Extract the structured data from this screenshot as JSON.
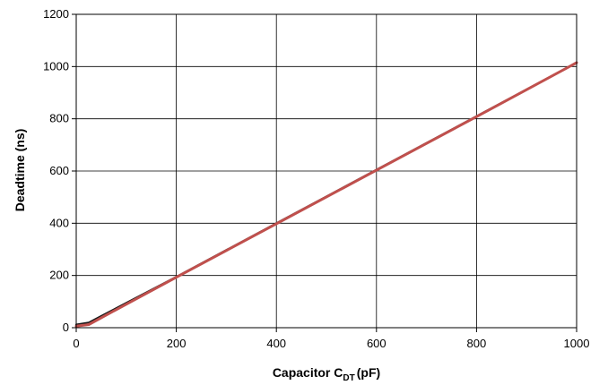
{
  "chart_data": {
    "type": "line",
    "title": "",
    "xlabel": {
      "main": "Capacitor C",
      "subscript": "DT",
      "unit": "(pF)"
    },
    "ylabel": "Deadtime (ns)",
    "xlim": [
      0,
      1000
    ],
    "ylim": [
      0,
      1200
    ],
    "xticks": [
      0,
      200,
      400,
      600,
      800,
      1000
    ],
    "yticks": [
      0,
      200,
      400,
      600,
      800,
      1000,
      1200
    ],
    "grid": true,
    "legend": "none",
    "series": [
      {
        "color": "#1a1a1a",
        "x": [
          0,
          25,
          50,
          100,
          200,
          400,
          600,
          800,
          1000
        ],
        "y": [
          12,
          20,
          45,
          95,
          195,
          400,
          605,
          810,
          1015
        ]
      },
      {
        "color": "#c0504d",
        "x": [
          0,
          25,
          50,
          100,
          200,
          400,
          600,
          800,
          1000
        ],
        "y": [
          6,
          12,
          38,
          90,
          193,
          398,
          603,
          808,
          1015
        ]
      }
    ]
  }
}
